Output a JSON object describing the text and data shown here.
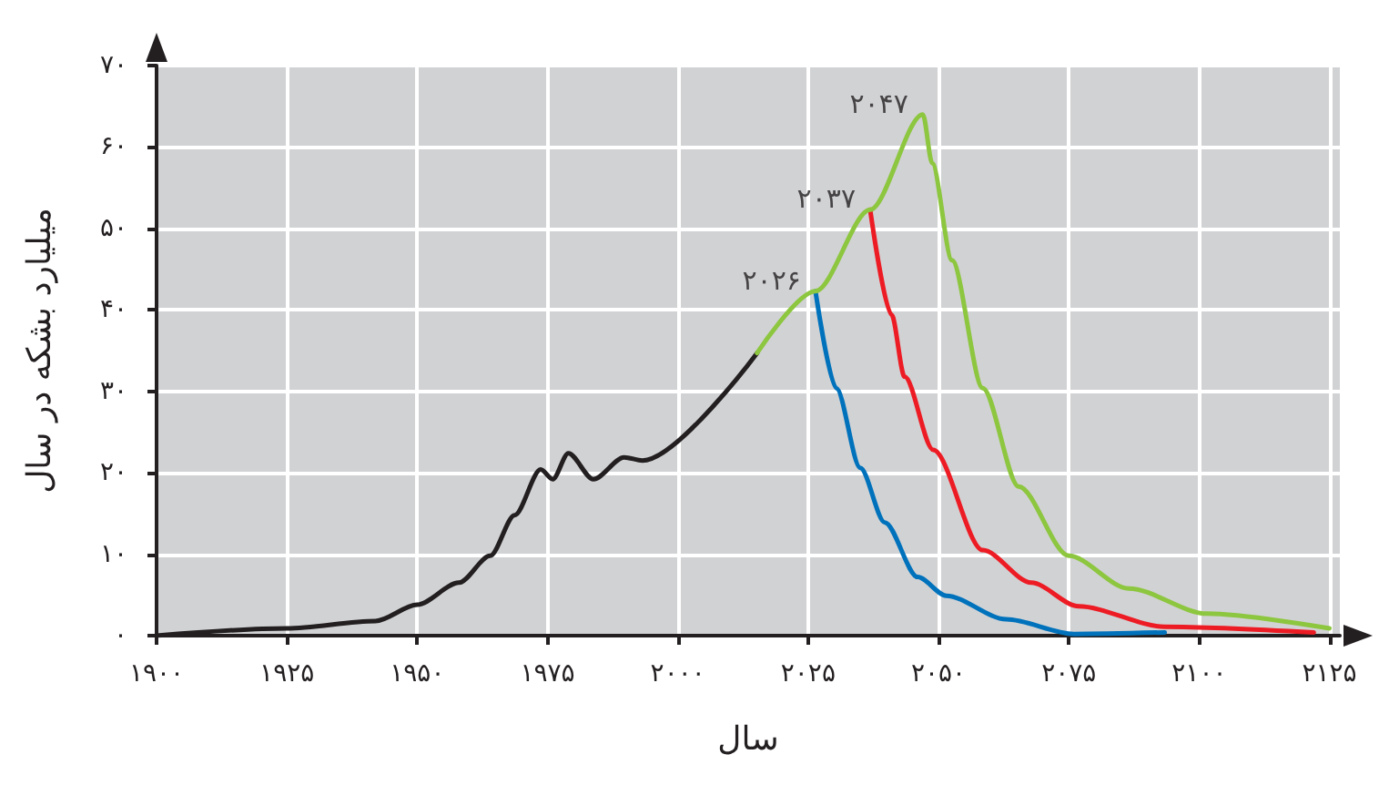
{
  "chart_data": {
    "type": "line",
    "xlabel": "سال",
    "ylabel": "میلیارد بشکه در سال",
    "series": [
      {
        "color": "#231f20",
        "x": [
          1900,
          1925,
          1942,
          1950,
          1958,
          1964,
          1968.7,
          1973.7,
          1976,
          1979,
          1983.8,
          1989.7,
          1993.2,
          2015.2
        ],
        "values": [
          0,
          0.9,
          1.8,
          3.8,
          6.5,
          9.8,
          14.8,
          20.4,
          19.2,
          22.4,
          19.2,
          21.9,
          21.5,
          34.7
        ]
      },
      {
        "color": "#0072bc",
        "x": [
          2026.4,
          2030.4,
          2035,
          2039.7,
          2046,
          2051.5,
          2063,
          2076,
          2093.4
        ],
        "values": [
          42.3,
          30.4,
          20.6,
          13.9,
          7.2,
          4.9,
          2.0,
          0.2,
          0.4
        ]
      },
      {
        "color": "#ed1c24",
        "x": [
          2036.9,
          2041,
          2043.5,
          2049,
          2058.5,
          2067.8,
          2076.9,
          2093.4,
          2122
        ],
        "values": [
          52.3,
          39.4,
          31.8,
          22.8,
          10.5,
          6.5,
          3.6,
          1.1,
          0.4
        ]
      },
      {
        "color": "#8dc63f",
        "x": [
          2015.2,
          2026.4,
          2036.9,
          2047,
          2048.8,
          2052.6,
          2058.5,
          2065.4,
          2075,
          2086.5,
          2101.5,
          2125
        ],
        "values": [
          34.7,
          42.3,
          52.3,
          64,
          58.0,
          46.1,
          30.4,
          18.3,
          9.8,
          5.8,
          2.7,
          0.9
        ]
      }
    ],
    "annotations": [
      {
        "text": "۲۰۲۶",
        "x": 2026.4,
        "y": 42.3
      },
      {
        "text": "۲۰۳۷",
        "x": 2036.9,
        "y": 52.3
      },
      {
        "text": "۲۰۴۷",
        "x": 2047,
        "y": 64
      }
    ],
    "xlim": [
      1900,
      2127
    ],
    "ylim": [
      0,
      70
    ],
    "xticks": [
      {
        "value": 1900,
        "label": "۱۹۰۰"
      },
      {
        "value": 1925,
        "label": "۱۹۲۵"
      },
      {
        "value": 1950,
        "label": "۱۹۵۰"
      },
      {
        "value": 1975,
        "label": "۱۹۷۵"
      },
      {
        "value": 2000,
        "label": "۲۰۰۰"
      },
      {
        "value": 2025,
        "label": "۲۰۲۵"
      },
      {
        "value": 2050,
        "label": "۲۰۵۰"
      },
      {
        "value": 2075,
        "label": "۲۰۷۵"
      },
      {
        "value": 2100,
        "label": "۲۱۰۰"
      },
      {
        "value": 2125,
        "label": "۲۱۲۵"
      }
    ],
    "yticks": [
      {
        "value": 0,
        "label": "۰"
      },
      {
        "value": 10,
        "label": "۱۰"
      },
      {
        "value": 20,
        "label": "۲۰"
      },
      {
        "value": 30,
        "label": "۳۰"
      },
      {
        "value": 40,
        "label": "۴۰"
      },
      {
        "value": 50,
        "label": "۵۰"
      },
      {
        "value": 60,
        "label": "۶۰"
      },
      {
        "value": 70,
        "label": "۷۰"
      }
    ],
    "grid": true,
    "marker": "none",
    "line_style": "solid"
  }
}
